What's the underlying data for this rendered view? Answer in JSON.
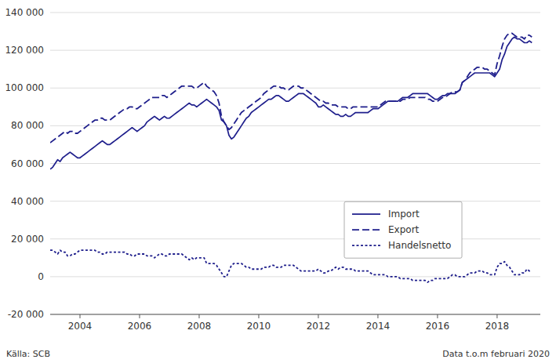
{
  "chart_data": {
    "type": "line",
    "annotations": [
      "Källa: SCB",
      "Data t.o.m februari 2020"
    ],
    "xlim": [
      2003.0,
      2019.45
    ],
    "xticks": [
      2004,
      2006,
      2008,
      2010,
      2012,
      2014,
      2016,
      2018
    ],
    "ylim": [
      -20000,
      140000
    ],
    "yticks": [
      {
        "value": -20000,
        "label": "-20 000"
      },
      0,
      {
        "value": 20000,
        "label": "20 000"
      },
      {
        "value": 40000,
        "label": "40 000"
      },
      {
        "value": 60000,
        "label": "60 000"
      },
      {
        "value": 80000,
        "label": "80 000"
      },
      {
        "value": 100000,
        "label": "100 000"
      },
      {
        "value": 120000,
        "label": "120 000"
      },
      {
        "value": 140000,
        "label": "140 000"
      }
    ],
    "grid": true,
    "legend": "right",
    "x": [
      2003.0,
      2003.083,
      2003.167,
      2003.25,
      2003.333,
      2003.417,
      2003.5,
      2003.583,
      2003.667,
      2003.75,
      2003.833,
      2003.917,
      2004.0,
      2004.083,
      2004.167,
      2004.25,
      2004.333,
      2004.417,
      2004.5,
      2004.583,
      2004.667,
      2004.75,
      2004.833,
      2004.917,
      2005.0,
      2005.083,
      2005.167,
      2005.25,
      2005.333,
      2005.417,
      2005.5,
      2005.583,
      2005.667,
      2005.75,
      2005.833,
      2005.917,
      2006.0,
      2006.083,
      2006.167,
      2006.25,
      2006.333,
      2006.417,
      2006.5,
      2006.583,
      2006.667,
      2006.75,
      2006.833,
      2006.917,
      2007.0,
      2007.083,
      2007.167,
      2007.25,
      2007.333,
      2007.417,
      2007.5,
      2007.583,
      2007.667,
      2007.75,
      2007.833,
      2007.917,
      2008.0,
      2008.083,
      2008.167,
      2008.25,
      2008.333,
      2008.417,
      2008.5,
      2008.583,
      2008.667,
      2008.75,
      2008.833,
      2008.917,
      2009.0,
      2009.083,
      2009.167,
      2009.25,
      2009.333,
      2009.417,
      2009.5,
      2009.583,
      2009.667,
      2009.75,
      2009.833,
      2009.917,
      2010.0,
      2010.083,
      2010.167,
      2010.25,
      2010.333,
      2010.417,
      2010.5,
      2010.583,
      2010.667,
      2010.75,
      2010.833,
      2010.917,
      2011.0,
      2011.083,
      2011.167,
      2011.25,
      2011.333,
      2011.417,
      2011.5,
      2011.583,
      2011.667,
      2011.75,
      2011.833,
      2011.917,
      2012.0,
      2012.083,
      2012.167,
      2012.25,
      2012.333,
      2012.417,
      2012.5,
      2012.583,
      2012.667,
      2012.75,
      2012.833,
      2012.917,
      2013.0,
      2013.083,
      2013.167,
      2013.25,
      2013.333,
      2013.417,
      2013.5,
      2013.583,
      2013.667,
      2013.75,
      2013.833,
      2013.917,
      2014.0,
      2014.083,
      2014.167,
      2014.25,
      2014.333,
      2014.417,
      2014.5,
      2014.583,
      2014.667,
      2014.75,
      2014.833,
      2014.917,
      2015.0,
      2015.083,
      2015.167,
      2015.25,
      2015.333,
      2015.417,
      2015.5,
      2015.583,
      2015.667,
      2015.75,
      2015.833,
      2015.917,
      2016.0,
      2016.083,
      2016.167,
      2016.25,
      2016.333,
      2016.417,
      2016.5,
      2016.583,
      2016.667,
      2016.75,
      2016.833,
      2016.917,
      2017.0,
      2017.083,
      2017.167,
      2017.25,
      2017.333,
      2017.417,
      2017.5,
      2017.583,
      2017.667,
      2017.75,
      2017.833,
      2017.917,
      2018.0,
      2018.083,
      2018.167,
      2018.25,
      2018.333,
      2018.417,
      2018.5,
      2018.583,
      2018.667,
      2018.75,
      2018.833,
      2018.917,
      2019.0,
      2019.083,
      2019.167
    ],
    "series": [
      {
        "name": "Import",
        "color": "#1F1F8C",
        "line_style": "solid",
        "values": [
          57000,
          58000,
          60000,
          62000,
          61000,
          63000,
          64000,
          65000,
          66000,
          65000,
          64000,
          63000,
          63000,
          64000,
          65000,
          66000,
          67000,
          68000,
          69000,
          70000,
          71000,
          72000,
          71000,
          70000,
          70000,
          71000,
          72000,
          73000,
          74000,
          75000,
          76000,
          77000,
          78000,
          79000,
          78000,
          77000,
          78000,
          79000,
          80000,
          82000,
          83000,
          84000,
          85000,
          84000,
          83000,
          84000,
          85000,
          84000,
          84000,
          85000,
          86000,
          87000,
          88000,
          89000,
          90000,
          91000,
          92000,
          91000,
          91000,
          90000,
          91000,
          92000,
          93000,
          94000,
          93000,
          92000,
          91000,
          90000,
          88000,
          83000,
          82000,
          80000,
          75000,
          73000,
          74000,
          76000,
          78000,
          80000,
          82000,
          84000,
          85000,
          87000,
          88000,
          89000,
          90000,
          91000,
          92000,
          93000,
          94000,
          94000,
          95000,
          96000,
          96000,
          95000,
          94000,
          93000,
          93000,
          94000,
          95000,
          96000,
          97000,
          97000,
          97000,
          96000,
          95000,
          94000,
          93000,
          92000,
          90000,
          90000,
          91000,
          90000,
          89000,
          88000,
          87000,
          86000,
          86000,
          85000,
          85000,
          86000,
          85000,
          85000,
          86000,
          87000,
          87000,
          87000,
          87000,
          87000,
          87000,
          88000,
          89000,
          89000,
          89000,
          90000,
          91000,
          92000,
          93000,
          93000,
          93000,
          93000,
          93000,
          94000,
          95000,
          95000,
          95000,
          96000,
          97000,
          97000,
          97000,
          97000,
          97000,
          97000,
          97000,
          96000,
          95000,
          94000,
          94000,
          95000,
          96000,
          96000,
          97000,
          97000,
          97000,
          97000,
          98000,
          99000,
          103000,
          104000,
          105000,
          106000,
          107000,
          108000,
          108000,
          108000,
          108000,
          108000,
          108000,
          108000,
          107000,
          106000,
          108000,
          110000,
          115000,
          118000,
          122000,
          124000,
          126000,
          127000,
          126000,
          126000,
          125000,
          124000,
          124000,
          125000,
          124000
        ]
      },
      {
        "name": "Export",
        "color": "#1F1F8C",
        "line_style": "dashed",
        "values": [
          71000,
          72000,
          73000,
          74000,
          75000,
          76000,
          77000,
          76000,
          77000,
          77000,
          76000,
          76000,
          77000,
          78000,
          79000,
          80000,
          81000,
          82000,
          83000,
          83000,
          84000,
          84000,
          83000,
          83000,
          83000,
          84000,
          85000,
          86000,
          87000,
          88000,
          89000,
          89000,
          90000,
          90000,
          89000,
          89000,
          90000,
          91000,
          92000,
          93000,
          94000,
          95000,
          95000,
          95000,
          95000,
          96000,
          96000,
          95000,
          96000,
          97000,
          98000,
          99000,
          100000,
          101000,
          101000,
          101000,
          101000,
          101000,
          100000,
          100000,
          101000,
          102000,
          103000,
          101000,
          100000,
          99000,
          98000,
          96000,
          92000,
          85000,
          82000,
          80000,
          78000,
          79000,
          81000,
          83000,
          85000,
          87000,
          88000,
          89000,
          90000,
          91000,
          92000,
          93000,
          94000,
          95000,
          97000,
          98000,
          99000,
          100000,
          101000,
          101000,
          101000,
          100000,
          100000,
          99000,
          99000,
          100000,
          101000,
          101000,
          101000,
          100000,
          100000,
          99000,
          98000,
          97000,
          96000,
          95000,
          94000,
          93000,
          93000,
          92000,
          92000,
          91000,
          91000,
          91000,
          90000,
          90000,
          90000,
          90000,
          89000,
          89000,
          90000,
          90000,
          90000,
          90000,
          90000,
          90000,
          90000,
          90000,
          90000,
          90000,
          90000,
          91000,
          92000,
          93000,
          93000,
          93000,
          93000,
          93000,
          93000,
          93000,
          94000,
          94000,
          94000,
          95000,
          95000,
          95000,
          95000,
          95000,
          95000,
          95000,
          94000,
          94000,
          93000,
          93000,
          93000,
          94000,
          95000,
          95000,
          96000,
          97000,
          98000,
          98000,
          98000,
          99000,
          103000,
          104000,
          106000,
          108000,
          109000,
          110000,
          111000,
          111000,
          111000,
          110000,
          110000,
          109000,
          108000,
          107000,
          113000,
          117000,
          122000,
          126000,
          128000,
          129000,
          129000,
          128000,
          127000,
          127000,
          127000,
          126000,
          128000,
          128000,
          127000
        ]
      },
      {
        "name": "Handelsnetto",
        "color": "#1F1F8C",
        "line_style": "dotted",
        "values": [
          14000,
          14000,
          13000,
          12000,
          14000,
          13000,
          13000,
          11000,
          11000,
          12000,
          12000,
          13000,
          14000,
          14000,
          14000,
          14000,
          14000,
          14000,
          14000,
          13000,
          13000,
          12000,
          12000,
          13000,
          13000,
          13000,
          13000,
          13000,
          13000,
          13000,
          13000,
          12000,
          12000,
          11000,
          11000,
          12000,
          12000,
          12000,
          12000,
          11000,
          11000,
          11000,
          10000,
          11000,
          12000,
          12000,
          11000,
          11000,
          12000,
          12000,
          12000,
          12000,
          12000,
          12000,
          11000,
          10000,
          9000,
          10000,
          9000,
          10000,
          10000,
          10000,
          10000,
          7000,
          7000,
          7000,
          7000,
          6000,
          4000,
          2000,
          0,
          0,
          3000,
          6000,
          7000,
          7000,
          7000,
          7000,
          6000,
          5000,
          5000,
          4000,
          4000,
          4000,
          4000,
          4000,
          5000,
          5000,
          5000,
          6000,
          6000,
          5000,
          5000,
          5000,
          6000,
          6000,
          6000,
          6000,
          6000,
          5000,
          4000,
          3000,
          3000,
          3000,
          3000,
          3000,
          3000,
          3000,
          4000,
          3000,
          2000,
          2000,
          3000,
          3000,
          4000,
          5000,
          4000,
          5000,
          5000,
          4000,
          4000,
          4000,
          4000,
          3000,
          3000,
          3000,
          3000,
          3000,
          3000,
          2000,
          1000,
          1000,
          1000,
          1000,
          1000,
          1000,
          0,
          0,
          0,
          0,
          0,
          -1000,
          -1000,
          -1000,
          -1000,
          -1000,
          -2000,
          -2000,
          -2000,
          -2000,
          -2000,
          -2000,
          -3000,
          -2000,
          -2000,
          -1000,
          -1000,
          -1000,
          -1000,
          -1000,
          -1000,
          0,
          1000,
          1000,
          0,
          0,
          0,
          0,
          1000,
          2000,
          2000,
          2000,
          3000,
          3000,
          3000,
          2000,
          2000,
          1000,
          1000,
          1000,
          5000,
          7000,
          7000,
          8000,
          6000,
          5000,
          3000,
          1000,
          1000,
          1000,
          2000,
          2000,
          4000,
          3000,
          3000
        ]
      }
    ]
  }
}
